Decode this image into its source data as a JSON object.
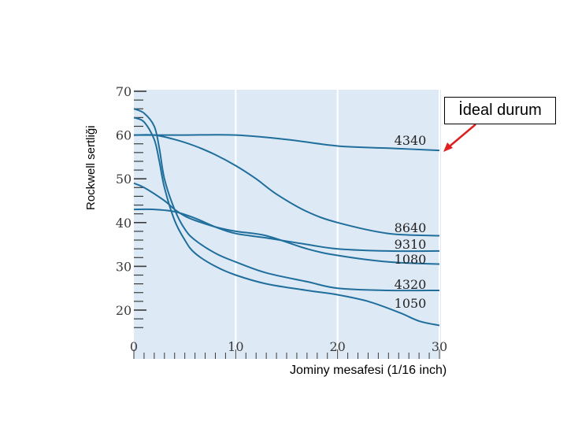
{
  "chart_data": {
    "type": "line",
    "xlabel": "Jominy mesafesi (1/16 inch)",
    "ylabel": "Rockwell sertliği",
    "xlim": [
      0,
      30
    ],
    "ylim": [
      15,
      70
    ],
    "xticks": [
      0,
      10,
      20,
      30
    ],
    "yticks": [
      20,
      30,
      40,
      50,
      60,
      70
    ],
    "annotation": "İdeal durum",
    "series": [
      {
        "name": "4340",
        "x": [
          0,
          2,
          5,
          10,
          15,
          20,
          25,
          30
        ],
        "y": [
          60,
          60,
          60,
          60,
          59,
          57.5,
          57,
          56.5
        ]
      },
      {
        "name": "8640",
        "x": [
          0,
          2,
          4,
          6,
          8,
          10,
          12,
          14,
          17,
          20,
          25,
          30
        ],
        "y": [
          60,
          60,
          59,
          57.5,
          55.5,
          53,
          50,
          46.5,
          42.5,
          40,
          37.5,
          37
        ]
      },
      {
        "name": "9310",
        "x": [
          0,
          2,
          4,
          6,
          8,
          10,
          13,
          17,
          20,
          25,
          30
        ],
        "y": [
          43,
          43,
          42.5,
          41,
          39,
          37.5,
          36.5,
          35,
          34,
          33.5,
          33.5
        ]
      },
      {
        "name": "1080",
        "x": [
          0,
          1,
          3,
          4,
          5,
          6,
          8,
          10,
          13,
          17,
          20,
          25,
          30
        ],
        "y": [
          49,
          48,
          45,
          43,
          41.5,
          40.5,
          39,
          38,
          37,
          34,
          32.5,
          31,
          30.5
        ]
      },
      {
        "name": "4320",
        "x": [
          0,
          1,
          2,
          2.5,
          3,
          4,
          5,
          6,
          8,
          10,
          13,
          17,
          20,
          25,
          30
        ],
        "y": [
          66,
          65,
          62,
          57,
          50,
          43,
          38.5,
          36,
          33,
          31,
          28.5,
          26.5,
          25,
          24.5,
          24.5
        ]
      },
      {
        "name": "1050",
        "x": [
          0,
          1,
          2,
          2.5,
          3,
          4,
          5,
          6,
          8,
          10,
          13,
          17,
          20,
          23,
          26,
          28,
          30
        ],
        "y": [
          64,
          63,
          59,
          54,
          48,
          40.5,
          36,
          33,
          30,
          28,
          26,
          24.5,
          23.5,
          22,
          19.5,
          17.5,
          16.5
        ]
      }
    ],
    "grid": "vertical"
  },
  "colors": {
    "plot_bg": "#dde9f5",
    "line": "#1f6e9c",
    "grid": "#ffffff",
    "tick": "#3a3a3a",
    "arrow": "#e02020",
    "axis_label": "#3a3a3a"
  }
}
